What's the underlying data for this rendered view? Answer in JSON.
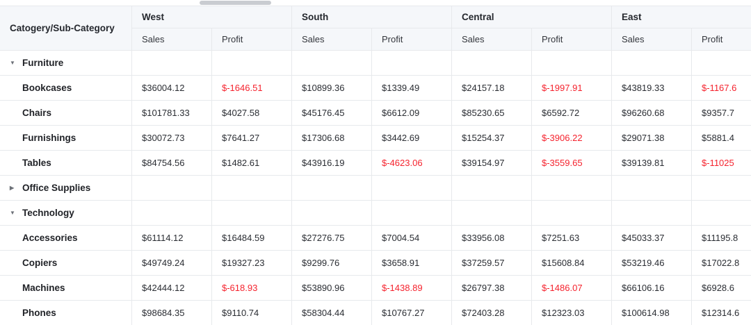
{
  "scrollbar": {
    "orientation": "horizontal"
  },
  "chart_data": {
    "type": "table",
    "title": "",
    "corner_label": "Catogery/Sub-Category",
    "column_groups": [
      "West",
      "South",
      "Central",
      "East"
    ],
    "sub_columns": [
      "Sales",
      "Profit"
    ],
    "rows": [
      {
        "label": "Furniture",
        "type": "category",
        "expanded": true,
        "cells": [
          "",
          "",
          "",
          "",
          "",
          "",
          "",
          ""
        ]
      },
      {
        "label": "Bookcases",
        "type": "subcategory",
        "cells": [
          "$36004.12",
          "$-1646.51",
          "$10899.36",
          "$1339.49",
          "$24157.18",
          "$-1997.91",
          "$43819.33",
          "$-1167.6"
        ]
      },
      {
        "label": "Chairs",
        "type": "subcategory",
        "cells": [
          "$101781.33",
          "$4027.58",
          "$45176.45",
          "$6612.09",
          "$85230.65",
          "$6592.72",
          "$96260.68",
          "$9357.7"
        ]
      },
      {
        "label": "Furnishings",
        "type": "subcategory",
        "cells": [
          "$30072.73",
          "$7641.27",
          "$17306.68",
          "$3442.69",
          "$15254.37",
          "$-3906.22",
          "$29071.38",
          "$5881.4"
        ]
      },
      {
        "label": "Tables",
        "type": "subcategory",
        "cells": [
          "$84754.56",
          "$1482.61",
          "$43916.19",
          "$-4623.06",
          "$39154.97",
          "$-3559.65",
          "$39139.81",
          "$-11025"
        ]
      },
      {
        "label": "Office Supplies",
        "type": "category",
        "expanded": false,
        "cells": [
          "",
          "",
          "",
          "",
          "",
          "",
          "",
          ""
        ]
      },
      {
        "label": "Technology",
        "type": "category",
        "expanded": true,
        "cells": [
          "",
          "",
          "",
          "",
          "",
          "",
          "",
          ""
        ]
      },
      {
        "label": "Accessories",
        "type": "subcategory",
        "cells": [
          "$61114.12",
          "$16484.59",
          "$27276.75",
          "$7004.54",
          "$33956.08",
          "$7251.63",
          "$45033.37",
          "$11195.8"
        ]
      },
      {
        "label": "Copiers",
        "type": "subcategory",
        "cells": [
          "$49749.24",
          "$19327.23",
          "$9299.76",
          "$3658.91",
          "$37259.57",
          "$15608.84",
          "$53219.46",
          "$17022.8"
        ]
      },
      {
        "label": "Machines",
        "type": "subcategory",
        "cells": [
          "$42444.12",
          "$-618.93",
          "$53890.96",
          "$-1438.89",
          "$26797.38",
          "$-1486.07",
          "$66106.16",
          "$6928.6"
        ]
      },
      {
        "label": "Phones",
        "type": "subcategory",
        "cells": [
          "$98684.35",
          "$9110.74",
          "$58304.44",
          "$10767.27",
          "$72403.28",
          "$12323.03",
          "$100614.98",
          "$12314.6"
        ]
      }
    ],
    "colors": {
      "negative": "#f5222d",
      "header_bg": "#f5f7fa",
      "border": "#e7e9ec",
      "text": "#25282e"
    }
  }
}
